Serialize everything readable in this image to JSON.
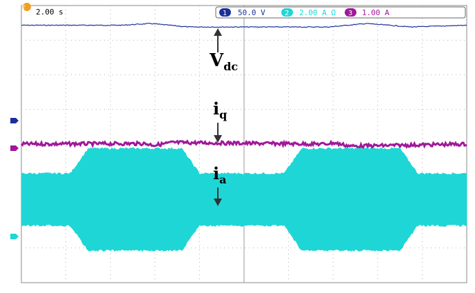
{
  "header": {
    "timebase": "2.00 s",
    "channels": [
      {
        "num": "1",
        "scale": "50.0 V",
        "color": "#1a2f9a"
      },
      {
        "num": "2",
        "scale": "2.00 A Ω",
        "color": "#1fd6d6"
      },
      {
        "num": "3",
        "scale": "1.00 A",
        "color": "#a0189a"
      }
    ],
    "trigger_color": "#f0a020"
  },
  "annotations": [
    {
      "main": "V",
      "sub": "dc",
      "arrow": "up"
    },
    {
      "main": "i",
      "sub": "q",
      "arrow": "down"
    },
    {
      "main": "i",
      "sub": "a",
      "arrow": "down"
    }
  ],
  "chart_data": {
    "type": "line",
    "grid": true,
    "divisions": {
      "x": 10,
      "y": 8
    },
    "time_per_div_s": 2.0,
    "series": [
      {
        "name": "Vdc",
        "channel": 1,
        "color": "#1a2f9a",
        "t": [
          0,
          4.5,
          5.8,
          7.5,
          13.8,
          15.5,
          17.5,
          20
        ],
        "level_div": [
          3.55,
          3.55,
          3.6,
          3.5,
          3.5,
          3.6,
          3.5,
          3.55
        ]
      },
      {
        "name": "iq",
        "channel": 3,
        "color": "#a0189a",
        "t": [
          0,
          5.5,
          6.0,
          6.8,
          13.6,
          14.0,
          14.8,
          20
        ],
        "level_div": [
          0.0,
          0.05,
          -0.1,
          0.15,
          0.0,
          0.12,
          -0.2,
          0.0
        ]
      },
      {
        "name": "ia",
        "channel": 2,
        "color": "#1fd6d6",
        "t": [
          0,
          2.2,
          3.0,
          7.2,
          8.0,
          10.0,
          11.8,
          12.6,
          17.0,
          17.8,
          20
        ],
        "amplitude_div": [
          1.0,
          1.0,
          2.0,
          2.0,
          1.0,
          1.0,
          1.0,
          2.0,
          2.0,
          1.0,
          1.0
        ]
      }
    ]
  }
}
